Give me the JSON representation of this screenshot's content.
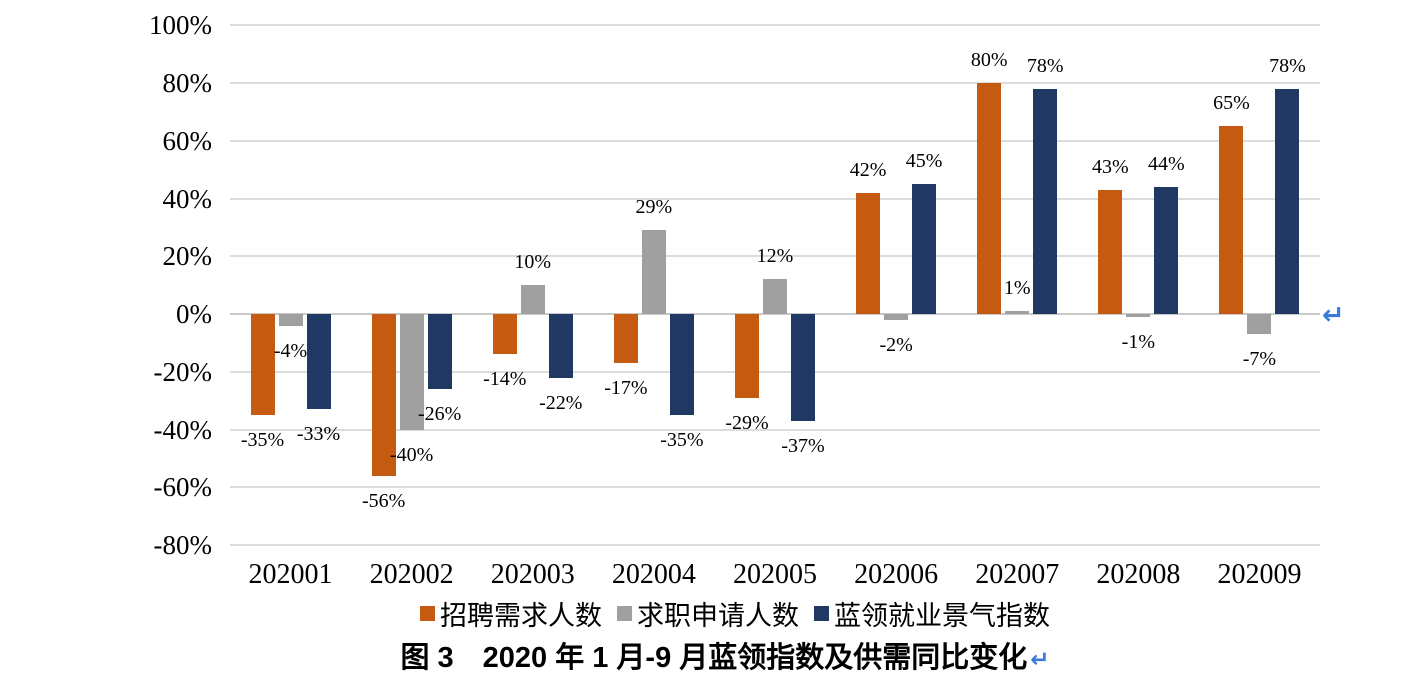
{
  "chart_data": {
    "type": "bar",
    "title": "",
    "xlabel": "",
    "ylabel": "",
    "categories": [
      "202001",
      "202002",
      "202003",
      "202004",
      "202005",
      "202006",
      "202007",
      "202008",
      "202009"
    ],
    "series": [
      {
        "name": "招聘需求人数",
        "color": "#C55A11",
        "values": [
          -35,
          -56,
          -14,
          -17,
          -29,
          42,
          80,
          43,
          65
        ]
      },
      {
        "name": "求职申请人数",
        "color": "#A0A0A0",
        "values": [
          -4,
          -40,
          10,
          29,
          12,
          -2,
          1,
          -1,
          -7
        ]
      },
      {
        "name": "蓝领就业景气指数",
        "color": "#1F3864",
        "values": [
          -33,
          -26,
          -22,
          -35,
          -37,
          45,
          78,
          44,
          78
        ]
      }
    ],
    "data_label_format": "{v}%",
    "ylim": [
      -80,
      100
    ],
    "ytick_step": 20,
    "ytick_labels": [
      "100%",
      "80%",
      "60%",
      "40%",
      "20%",
      "0%",
      "-20%",
      "-40%",
      "-60%",
      "-80%"
    ],
    "grid": true,
    "legend_position": "bottom"
  },
  "chart": {
    "return_mark": "↵"
  },
  "caption": {
    "text": "图 3　2020 年 1 月-9 月蓝领指数及供需同比变化",
    "return_mark": "↵"
  },
  "colors": {
    "gridline": "#DCDCDC",
    "axis_line": "#C9C9C9",
    "return_mark": "#3B7BDB",
    "bar_orange": "#C55A11",
    "bar_gray": "#A0A0A0",
    "bar_navy": "#1F3864"
  }
}
